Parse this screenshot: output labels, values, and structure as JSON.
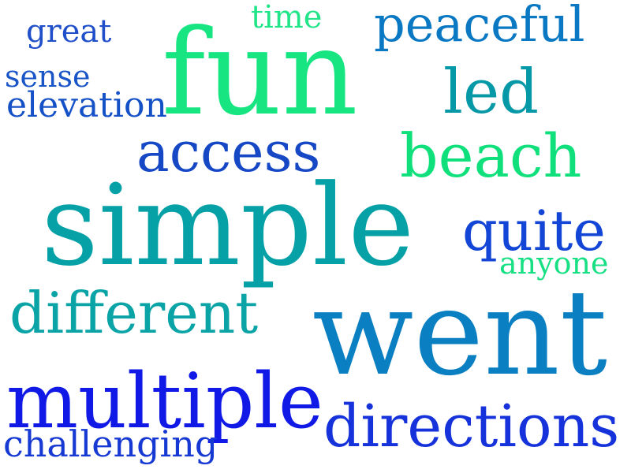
{
  "word_cloud": {
    "words": [
      {
        "id": "time",
        "text": "time",
        "color": "#22e58a"
      },
      {
        "id": "great",
        "text": "great",
        "color": "#1f4fc9"
      },
      {
        "id": "peaceful",
        "text": "peaceful",
        "color": "#0a78c2"
      },
      {
        "id": "fun",
        "text": "fun",
        "color": "#16e582"
      },
      {
        "id": "sense",
        "text": "sense",
        "color": "#1a55c7"
      },
      {
        "id": "elevation",
        "text": "elevation",
        "color": "#1551c6"
      },
      {
        "id": "led",
        "text": "led",
        "color": "#0598a6"
      },
      {
        "id": "access",
        "text": "access",
        "color": "#1647c5"
      },
      {
        "id": "beach",
        "text": "beach",
        "color": "#0fe07c"
      },
      {
        "id": "simple",
        "text": "simple",
        "color": "#05a1a6"
      },
      {
        "id": "quite",
        "text": "quite",
        "color": "#1345d6"
      },
      {
        "id": "anyone",
        "text": "anyone",
        "color": "#16e083"
      },
      {
        "id": "different",
        "text": "different",
        "color": "#0aa3a6"
      },
      {
        "id": "went",
        "text": "went",
        "color": "#0a7fc2"
      },
      {
        "id": "multiple",
        "text": "multiple",
        "color": "#1019e6"
      },
      {
        "id": "directions",
        "text": "directions",
        "color": "#1632db"
      },
      {
        "id": "challenging",
        "text": "challenging",
        "color": "#1639d4"
      }
    ]
  }
}
